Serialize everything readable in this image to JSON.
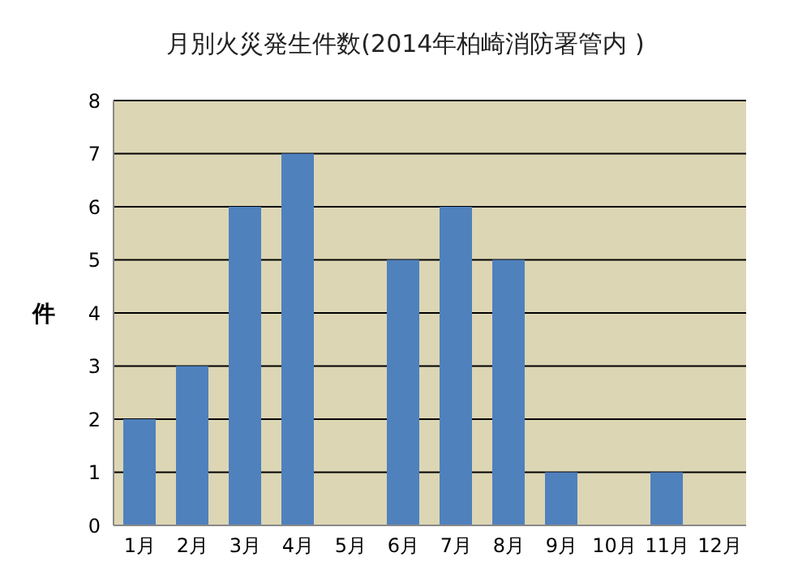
{
  "chart_data": {
    "type": "bar",
    "title": "月別火災発生件数(2014年柏崎消防署管内 )",
    "ylabel": "件",
    "categories": [
      "1月",
      "2月",
      "3月",
      "4月",
      "5月",
      "6月",
      "7月",
      "8月",
      "9月",
      "10月",
      "11月",
      "12月"
    ],
    "values": [
      2,
      3,
      6,
      7,
      0,
      5,
      6,
      5,
      1,
      0,
      1,
      0
    ],
    "color": "#4f81bd",
    "ylim": [
      0,
      8
    ],
    "yticks": [
      0,
      1,
      2,
      3,
      4,
      5,
      6,
      7,
      8
    ],
    "grid": "y"
  }
}
